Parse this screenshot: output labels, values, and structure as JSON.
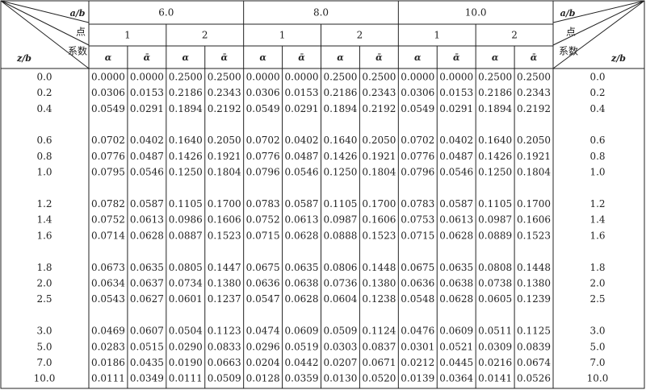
{
  "header": {
    "corner_left": {
      "ab": "a/b",
      "point": "点",
      "coef": "系数",
      "zb": "z/b"
    },
    "corner_right": {
      "ab": "a/b",
      "point": "点",
      "coef": "系数",
      "zb": "z/b"
    },
    "groups": [
      {
        "label": "6.0",
        "points": [
          {
            "label": "1",
            "cols": [
              "α",
              "ᾱ"
            ]
          },
          {
            "label": "2",
            "cols": [
              "α",
              "ᾱ"
            ]
          }
        ]
      },
      {
        "label": "8.0",
        "points": [
          {
            "label": "1",
            "cols": [
              "α",
              "ᾱ"
            ]
          },
          {
            "label": "2",
            "cols": [
              "α",
              "ᾱ"
            ]
          }
        ]
      },
      {
        "label": "10.0",
        "points": [
          {
            "label": "1",
            "cols": [
              "α",
              "ᾱ"
            ]
          },
          {
            "label": "2",
            "cols": [
              "α",
              "ᾱ"
            ]
          }
        ]
      }
    ]
  },
  "row_groups": [
    [
      {
        "zb": "0.0",
        "values": [
          "0.0000",
          "0.0000",
          "0.2500",
          "0.2500",
          "0.0000",
          "0.0000",
          "0.2500",
          "0.2500",
          "0.0000",
          "0.0000",
          "0.2500",
          "0.2500"
        ]
      },
      {
        "zb": "0.2",
        "values": [
          "0.0306",
          "0.0153",
          "0.2186",
          "0.2343",
          "0.0306",
          "0.0153",
          "0.2186",
          "0.2343",
          "0.0306",
          "0.0153",
          "0.2186",
          "0.2343"
        ]
      },
      {
        "zb": "0.4",
        "values": [
          "0.0549",
          "0.0291",
          "0.1894",
          "0.2192",
          "0.0549",
          "0.0291",
          "0.1894",
          "0.2192",
          "0.0549",
          "0.0291",
          "0.1894",
          "0.2192"
        ]
      }
    ],
    [
      {
        "zb": "0.6",
        "values": [
          "0.0702",
          "0.0402",
          "0.1640",
          "0.2050",
          "0.0702",
          "0.0402",
          "0.1640",
          "0.2050",
          "0.0702",
          "0.0402",
          "0.1640",
          "0.2050"
        ]
      },
      {
        "zb": "0.8",
        "values": [
          "0.0776",
          "0.0487",
          "0.1426",
          "0.1921",
          "0.0776",
          "0.0487",
          "0.1426",
          "0.1921",
          "0.0776",
          "0.0487",
          "0.1426",
          "0.1921"
        ]
      },
      {
        "zb": "1.0",
        "values": [
          "0.0795",
          "0.0546",
          "0.1250",
          "0.1804",
          "0.0796",
          "0.0546",
          "0.1250",
          "0.1804",
          "0.0796",
          "0.0546",
          "0.1250",
          "0.1804"
        ]
      }
    ],
    [
      {
        "zb": "1.2",
        "values": [
          "0.0782",
          "0.0587",
          "0.1105",
          "0.1700",
          "0.0783",
          "0.0587",
          "0.1105",
          "0.1700",
          "0.0783",
          "0.0587",
          "0.1105",
          "0.1700"
        ]
      },
      {
        "zb": "1.4",
        "values": [
          "0.0752",
          "0.0613",
          "0.0986",
          "0.1606",
          "0.0752",
          "0.0613",
          "0.0987",
          "0.1606",
          "0.0753",
          "0.0613",
          "0.0987",
          "0.1606"
        ]
      },
      {
        "zb": "1.6",
        "values": [
          "0.0714",
          "0.0628",
          "0.0887",
          "0.1523",
          "0.0715",
          "0.0628",
          "0.0888",
          "0.1523",
          "0.0715",
          "0.0628",
          "0.0889",
          "0.1523"
        ]
      }
    ],
    [
      {
        "zb": "1.8",
        "values": [
          "0.0673",
          "0.0635",
          "0.0805",
          "0.1447",
          "0.0675",
          "0.0635",
          "0.0806",
          "0.1448",
          "0.0675",
          "0.0635",
          "0.0808",
          "0.1448"
        ]
      },
      {
        "zb": "2.0",
        "values": [
          "0.0634",
          "0.0637",
          "0.0734",
          "0.1380",
          "0.0636",
          "0.0638",
          "0.0736",
          "0.1380",
          "0.0636",
          "0.0638",
          "0.0738",
          "0.1380"
        ]
      },
      {
        "zb": "2.5",
        "values": [
          "0.0543",
          "0.0627",
          "0.0601",
          "0.1237",
          "0.0547",
          "0.0628",
          "0.0604",
          "0.1238",
          "0.0548",
          "0.0628",
          "0.0605",
          "0.1239"
        ]
      }
    ],
    [
      {
        "zb": "3.0",
        "values": [
          "0.0469",
          "0.0607",
          "0.0504",
          "0.1123",
          "0.0474",
          "0.0609",
          "0.0509",
          "0.1124",
          "0.0476",
          "0.0609",
          "0.0511",
          "0.1125"
        ]
      },
      {
        "zb": "5.0",
        "values": [
          "0.0283",
          "0.0515",
          "0.0290",
          "0.0833",
          "0.0296",
          "0.0519",
          "0.0303",
          "0.0837",
          "0.0301",
          "0.0521",
          "0.0309",
          "0.0839"
        ]
      },
      {
        "zb": "7.0",
        "values": [
          "0.0186",
          "0.0435",
          "0.0190",
          "0.0663",
          "0.0204",
          "0.0442",
          "0.0207",
          "0.0671",
          "0.0212",
          "0.0445",
          "0.0216",
          "0.0674"
        ]
      },
      {
        "zb": "10.0",
        "values": [
          "0.0111",
          "0.0349",
          "0.0111",
          "0.0509",
          "0.0128",
          "0.0359",
          "0.0130",
          "0.0520",
          "0.0139",
          "0.0364",
          "0.0141",
          "0.0526"
        ]
      }
    ]
  ]
}
